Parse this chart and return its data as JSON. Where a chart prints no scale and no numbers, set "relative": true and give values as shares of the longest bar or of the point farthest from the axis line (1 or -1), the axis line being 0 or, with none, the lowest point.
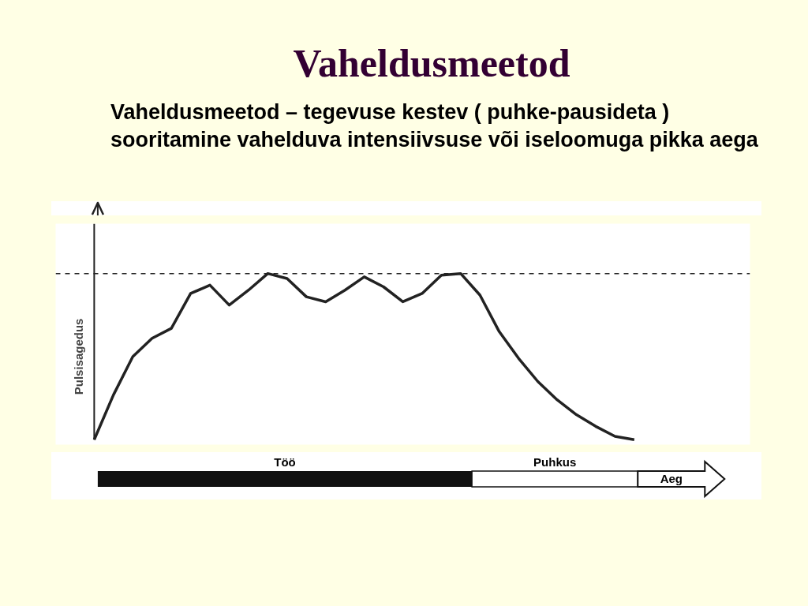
{
  "chart_data": {
    "type": "line",
    "title": "Vaheldusmeetod",
    "subtitle": "Vaheldusmeetod – tegevuse kestev  ( puhke-pausideta )  sooritamine vahelduva  intensiivsuse või  iseloomuga  pikka aega",
    "xlabel": "Aeg",
    "ylabel": "Pulsisagedus",
    "annotations": [
      "Töö",
      "Puhkus"
    ],
    "relative": true,
    "color": "#222222",
    "categories": [
      null,
      null,
      null,
      null,
      null,
      null,
      null,
      null,
      null,
      null,
      null,
      null,
      null,
      null,
      null,
      null,
      null,
      null,
      null,
      null,
      null,
      null,
      null,
      null,
      null,
      null,
      null,
      null,
      null
    ],
    "values": [
      0,
      0.27,
      0.5,
      0.61,
      0.67,
      0.88,
      0.93,
      0.81,
      0.9,
      1.0,
      0.97,
      0.86,
      0.83,
      0.9,
      0.98,
      0.92,
      0.83,
      0.88,
      0.99,
      1.0,
      0.87,
      0.65,
      0.49,
      0.35,
      0.24,
      0.15,
      0.08,
      0.02,
      0
    ],
    "ref_lines": [
      {
        "axis": "y",
        "value": 1,
        "line_style": "dashed"
      }
    ],
    "grid": false
  }
}
